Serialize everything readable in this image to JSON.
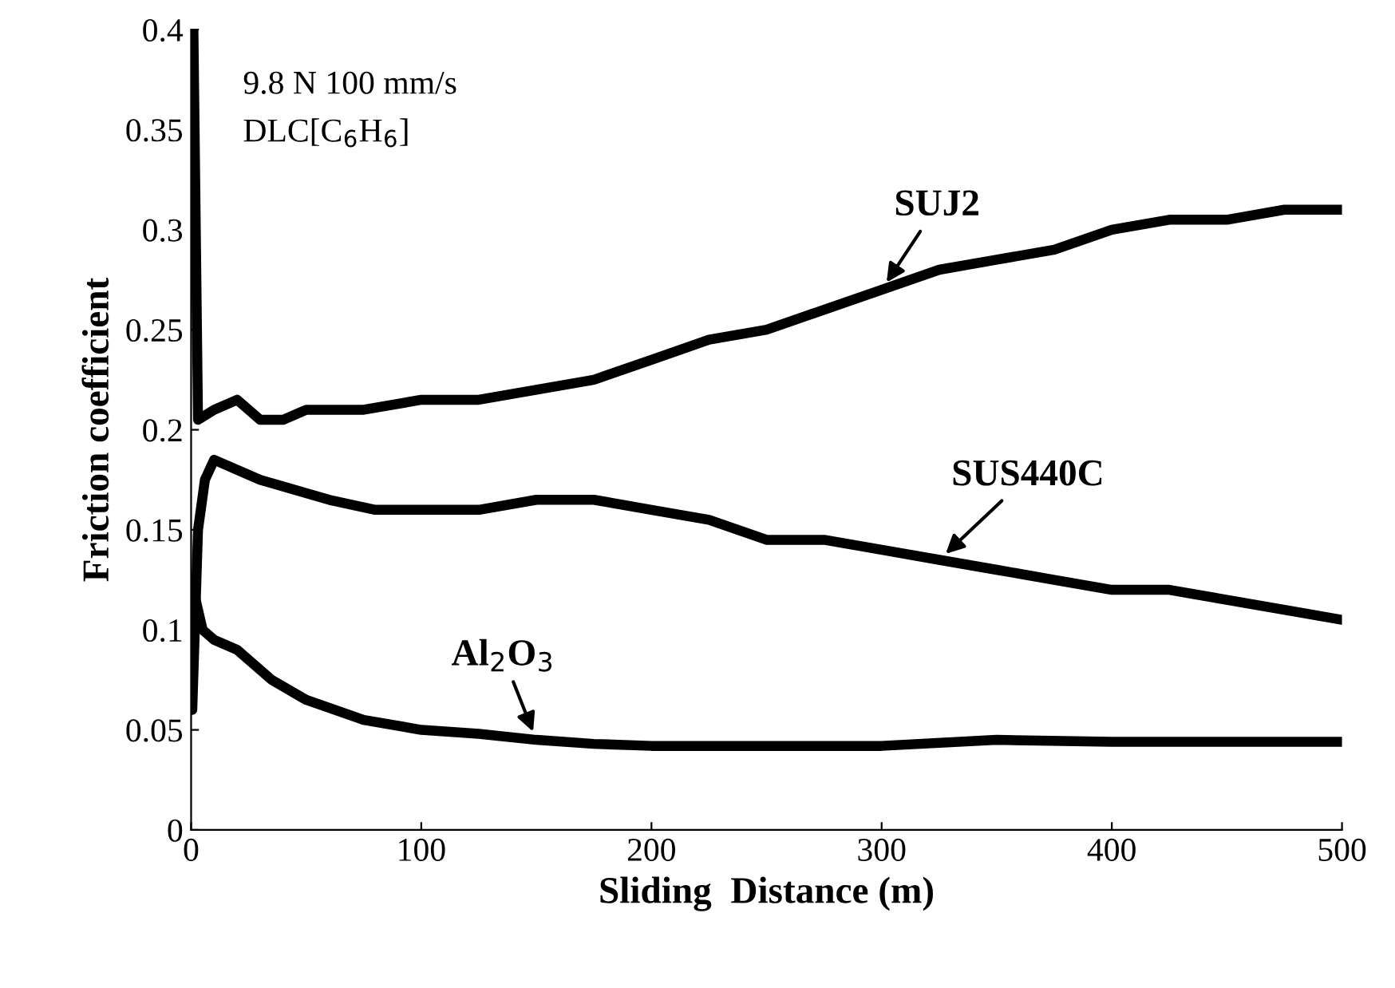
{
  "chart_data": {
    "type": "line",
    "xlabel": "Sliding  Distance (m)",
    "ylabel": "Friction coefficient",
    "xlim": [
      0,
      500
    ],
    "ylim": [
      0,
      0.4
    ],
    "xticks": [
      0,
      100,
      200,
      300,
      400,
      500
    ],
    "yticks": [
      0,
      0.05,
      0.1,
      0.15,
      0.2,
      0.25,
      0.3,
      0.35,
      0.4
    ],
    "grid": false,
    "legend": false,
    "marker": "none",
    "line_style": "solid",
    "series": [
      {
        "name": "SUJ2",
        "color": "#000000",
        "x": [
          1,
          3,
          10,
          20,
          30,
          40,
          50,
          75,
          100,
          125,
          150,
          175,
          200,
          225,
          250,
          275,
          300,
          325,
          350,
          375,
          400,
          425,
          450,
          475,
          500
        ],
        "values": [
          0.4,
          0.205,
          0.21,
          0.215,
          0.205,
          0.205,
          0.21,
          0.21,
          0.215,
          0.215,
          0.22,
          0.225,
          0.235,
          0.245,
          0.25,
          0.26,
          0.27,
          0.28,
          0.285,
          0.29,
          0.3,
          0.305,
          0.305,
          0.31,
          0.31
        ]
      },
      {
        "name": "SUS440C",
        "color": "#000000",
        "x": [
          0.5,
          3,
          6,
          10,
          20,
          30,
          45,
          60,
          80,
          100,
          125,
          150,
          175,
          200,
          225,
          250,
          275,
          300,
          325,
          350,
          375,
          400,
          425,
          450,
          475,
          500
        ],
        "values": [
          0.06,
          0.15,
          0.175,
          0.185,
          0.18,
          0.175,
          0.17,
          0.165,
          0.16,
          0.16,
          0.16,
          0.165,
          0.165,
          0.16,
          0.155,
          0.145,
          0.145,
          0.14,
          0.135,
          0.13,
          0.125,
          0.12,
          0.12,
          0.115,
          0.11,
          0.105
        ]
      },
      {
        "name": "Al$_{2}$O$_{3}$",
        "color": "#000000",
        "x": [
          1,
          5,
          10,
          20,
          35,
          50,
          75,
          100,
          125,
          150,
          175,
          200,
          250,
          300,
          350,
          400,
          450,
          500
        ],
        "values": [
          0.12,
          0.1,
          0.095,
          0.09,
          0.075,
          0.065,
          0.055,
          0.05,
          0.048,
          0.045,
          0.043,
          0.042,
          0.042,
          0.042,
          0.045,
          0.044,
          0.044,
          0.044
        ]
      }
    ],
    "annotations": [
      "9.8 N 100 mm/s",
      "DLC[C$_{6}$H$_{6}$]"
    ]
  }
}
